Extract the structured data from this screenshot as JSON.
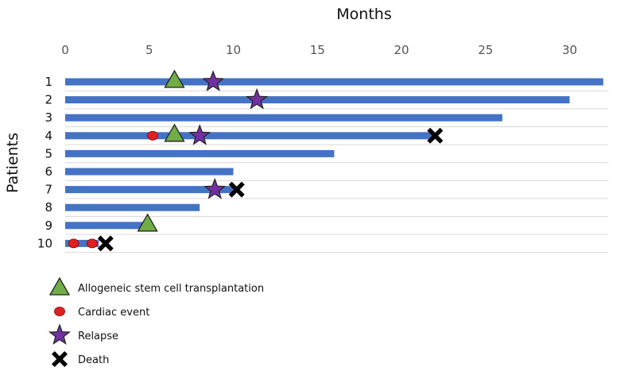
{
  "chart_data": {
    "type": "timeline",
    "xlabel": "Months",
    "ylabel": "Patients",
    "xlim": [
      0,
      32
    ],
    "xticks": [
      0,
      5,
      10,
      15,
      20,
      25,
      30
    ],
    "grid": "horizontal",
    "bar_color": "#4472C4",
    "patients": [
      {
        "label": "1",
        "duration": 32
      },
      {
        "label": "2",
        "duration": 30
      },
      {
        "label": "3",
        "duration": 26
      },
      {
        "label": "4",
        "duration": 22
      },
      {
        "label": "5",
        "duration": 16
      },
      {
        "label": "6",
        "duration": 10
      },
      {
        "label": "7",
        "duration": 10
      },
      {
        "label": "8",
        "duration": 8
      },
      {
        "label": "9",
        "duration": 5
      },
      {
        "label": "10",
        "duration": 2
      }
    ],
    "events": [
      {
        "patient": "1",
        "type": "transplant",
        "month": 6.5
      },
      {
        "patient": "1",
        "type": "relapse",
        "month": 8.8
      },
      {
        "patient": "2",
        "type": "relapse",
        "month": 11.4
      },
      {
        "patient": "4",
        "type": "cardiac",
        "month": 5.2
      },
      {
        "patient": "4",
        "type": "transplant",
        "month": 6.5
      },
      {
        "patient": "4",
        "type": "relapse",
        "month": 8.0
      },
      {
        "patient": "4",
        "type": "death",
        "month": 22.0
      },
      {
        "patient": "7",
        "type": "relapse",
        "month": 8.9
      },
      {
        "patient": "7",
        "type": "death",
        "month": 10.2
      },
      {
        "patient": "9",
        "type": "transplant",
        "month": 4.9
      },
      {
        "patient": "10",
        "type": "cardiac",
        "month": 0.5
      },
      {
        "patient": "10",
        "type": "cardiac",
        "month": 1.6
      },
      {
        "patient": "10",
        "type": "death",
        "month": 2.4
      }
    ],
    "legend": [
      {
        "type": "transplant",
        "label": "Allogeneic stem cell transplantation",
        "color": "#70AD47",
        "icon": "triangle-icon"
      },
      {
        "type": "cardiac",
        "label": "Cardiac event",
        "color": "#E02020",
        "icon": "circle-icon"
      },
      {
        "type": "relapse",
        "label": "Relapse",
        "color": "#7030A0",
        "icon": "star-icon"
      },
      {
        "type": "death",
        "label": "Death",
        "color": "#000000",
        "icon": "cross-icon"
      }
    ],
    "legend_position": "bottom-left"
  }
}
